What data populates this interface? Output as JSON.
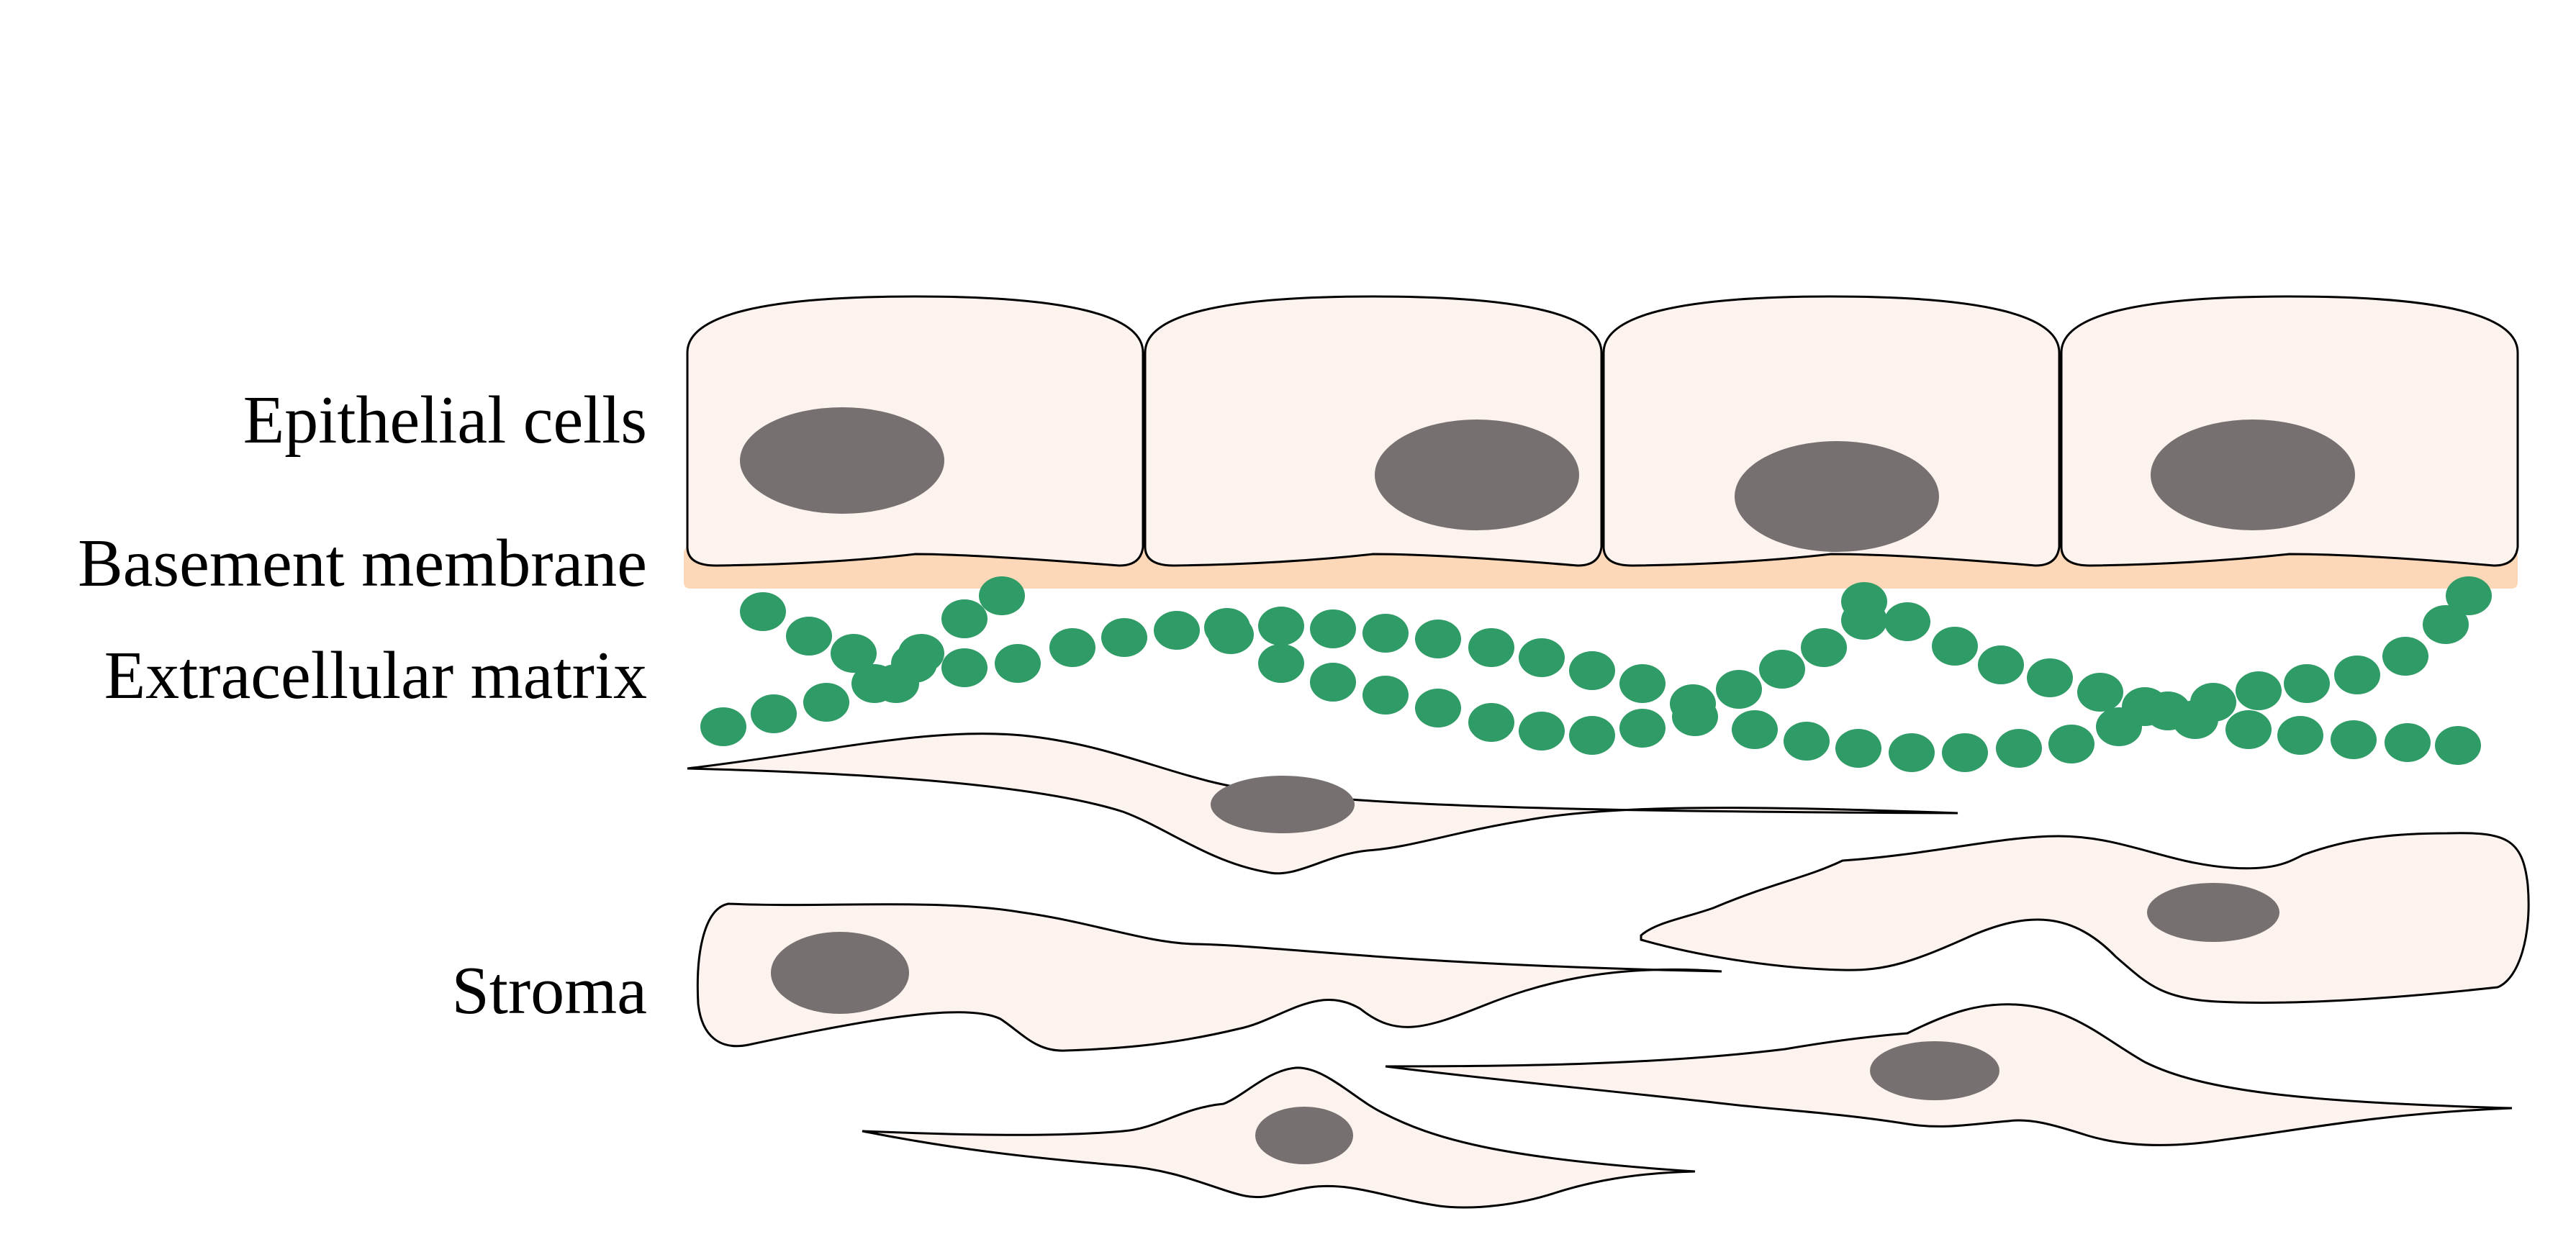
{
  "labels": {
    "epithelial_cells": "Epithelial cells",
    "basement_membrane": "Basement membrane",
    "extracellular_matrix": "Extracellular matrix",
    "stroma": "Stroma"
  },
  "colors": {
    "cell_fill": "#fdf3ee",
    "nucleus": "#767170",
    "basement_membrane": "#fdd8b8",
    "matrix_fiber": "#2f9b66",
    "outline": "#000000"
  }
}
